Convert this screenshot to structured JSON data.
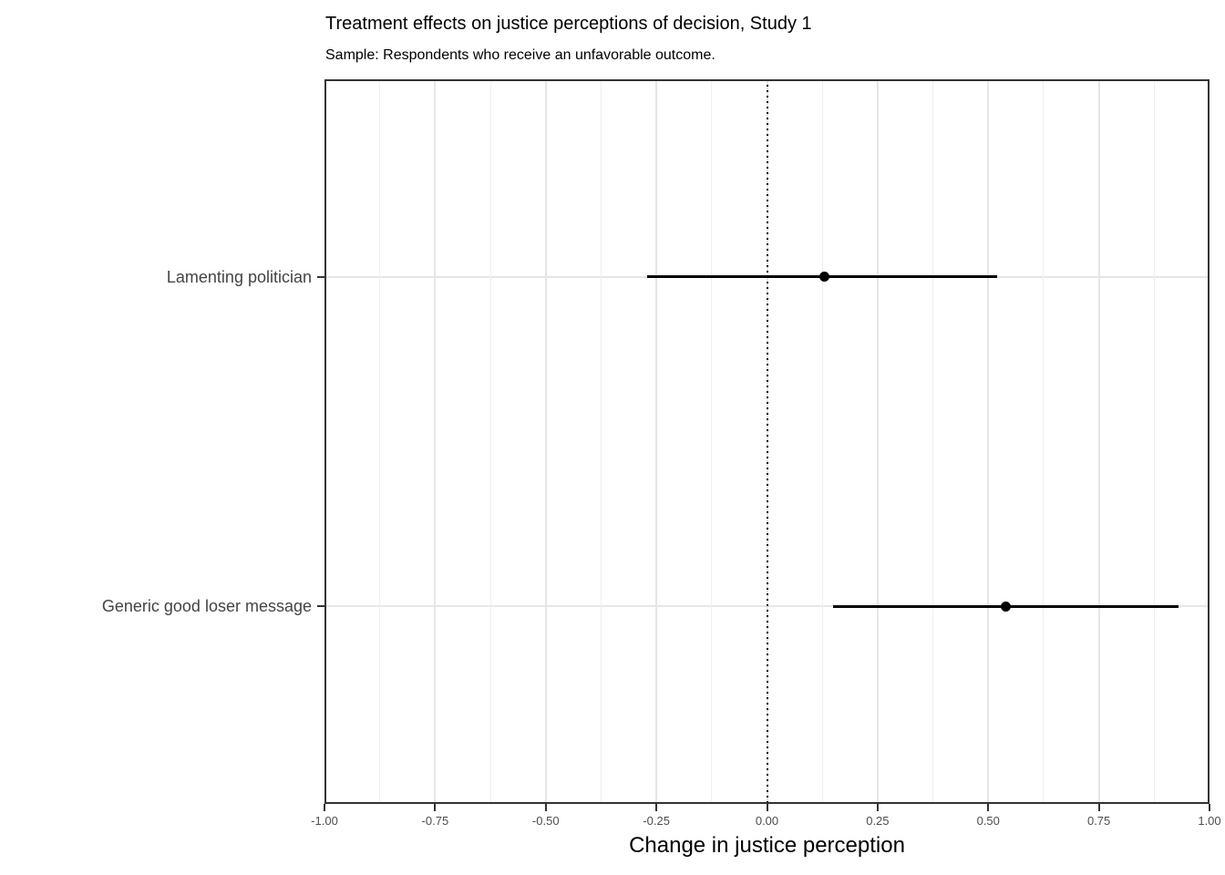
{
  "chart_data": {
    "type": "scatter",
    "subtype": "coefficient-plot-with-error-bars",
    "title": "Treatment effects on justice perceptions of decision, Study 1",
    "subtitle": "Sample: Respondents who receive an unfavorable outcome.",
    "xlabel": "Change in justice perception",
    "ylabel": "",
    "xlim": [
      -1.0,
      1.0
    ],
    "x_ticks": [
      -1.0,
      -0.75,
      -0.5,
      -0.25,
      0.0,
      0.25,
      0.5,
      0.75,
      1.0
    ],
    "x_tick_labels": [
      "-1.00",
      "-0.75",
      "-0.50",
      "-0.25",
      "0.00",
      "0.25",
      "0.50",
      "0.75",
      "1.00"
    ],
    "x_minor_step": 0.125,
    "grid": true,
    "legend_position": "none",
    "reference_line": {
      "x": 0,
      "style": "dotted",
      "color": "#000000"
    },
    "categories": [
      "Lamenting politician",
      "Generic good loser message"
    ],
    "series": [
      {
        "category": "Lamenting politician",
        "estimate": 0.13,
        "ci_low": -0.27,
        "ci_high": 0.52
      },
      {
        "category": "Generic good loser message",
        "estimate": 0.54,
        "ci_low": 0.15,
        "ci_high": 0.93
      }
    ],
    "colors": {
      "point": "#000000",
      "ci_line": "#000000",
      "grid_major": "#e6e6e6",
      "grid_minor": "#efefef",
      "panel_border": "#333333",
      "tick_mark": "#333333",
      "tick_label": "#4d4d4d",
      "category_label": "#444444",
      "background": "#ffffff"
    }
  }
}
